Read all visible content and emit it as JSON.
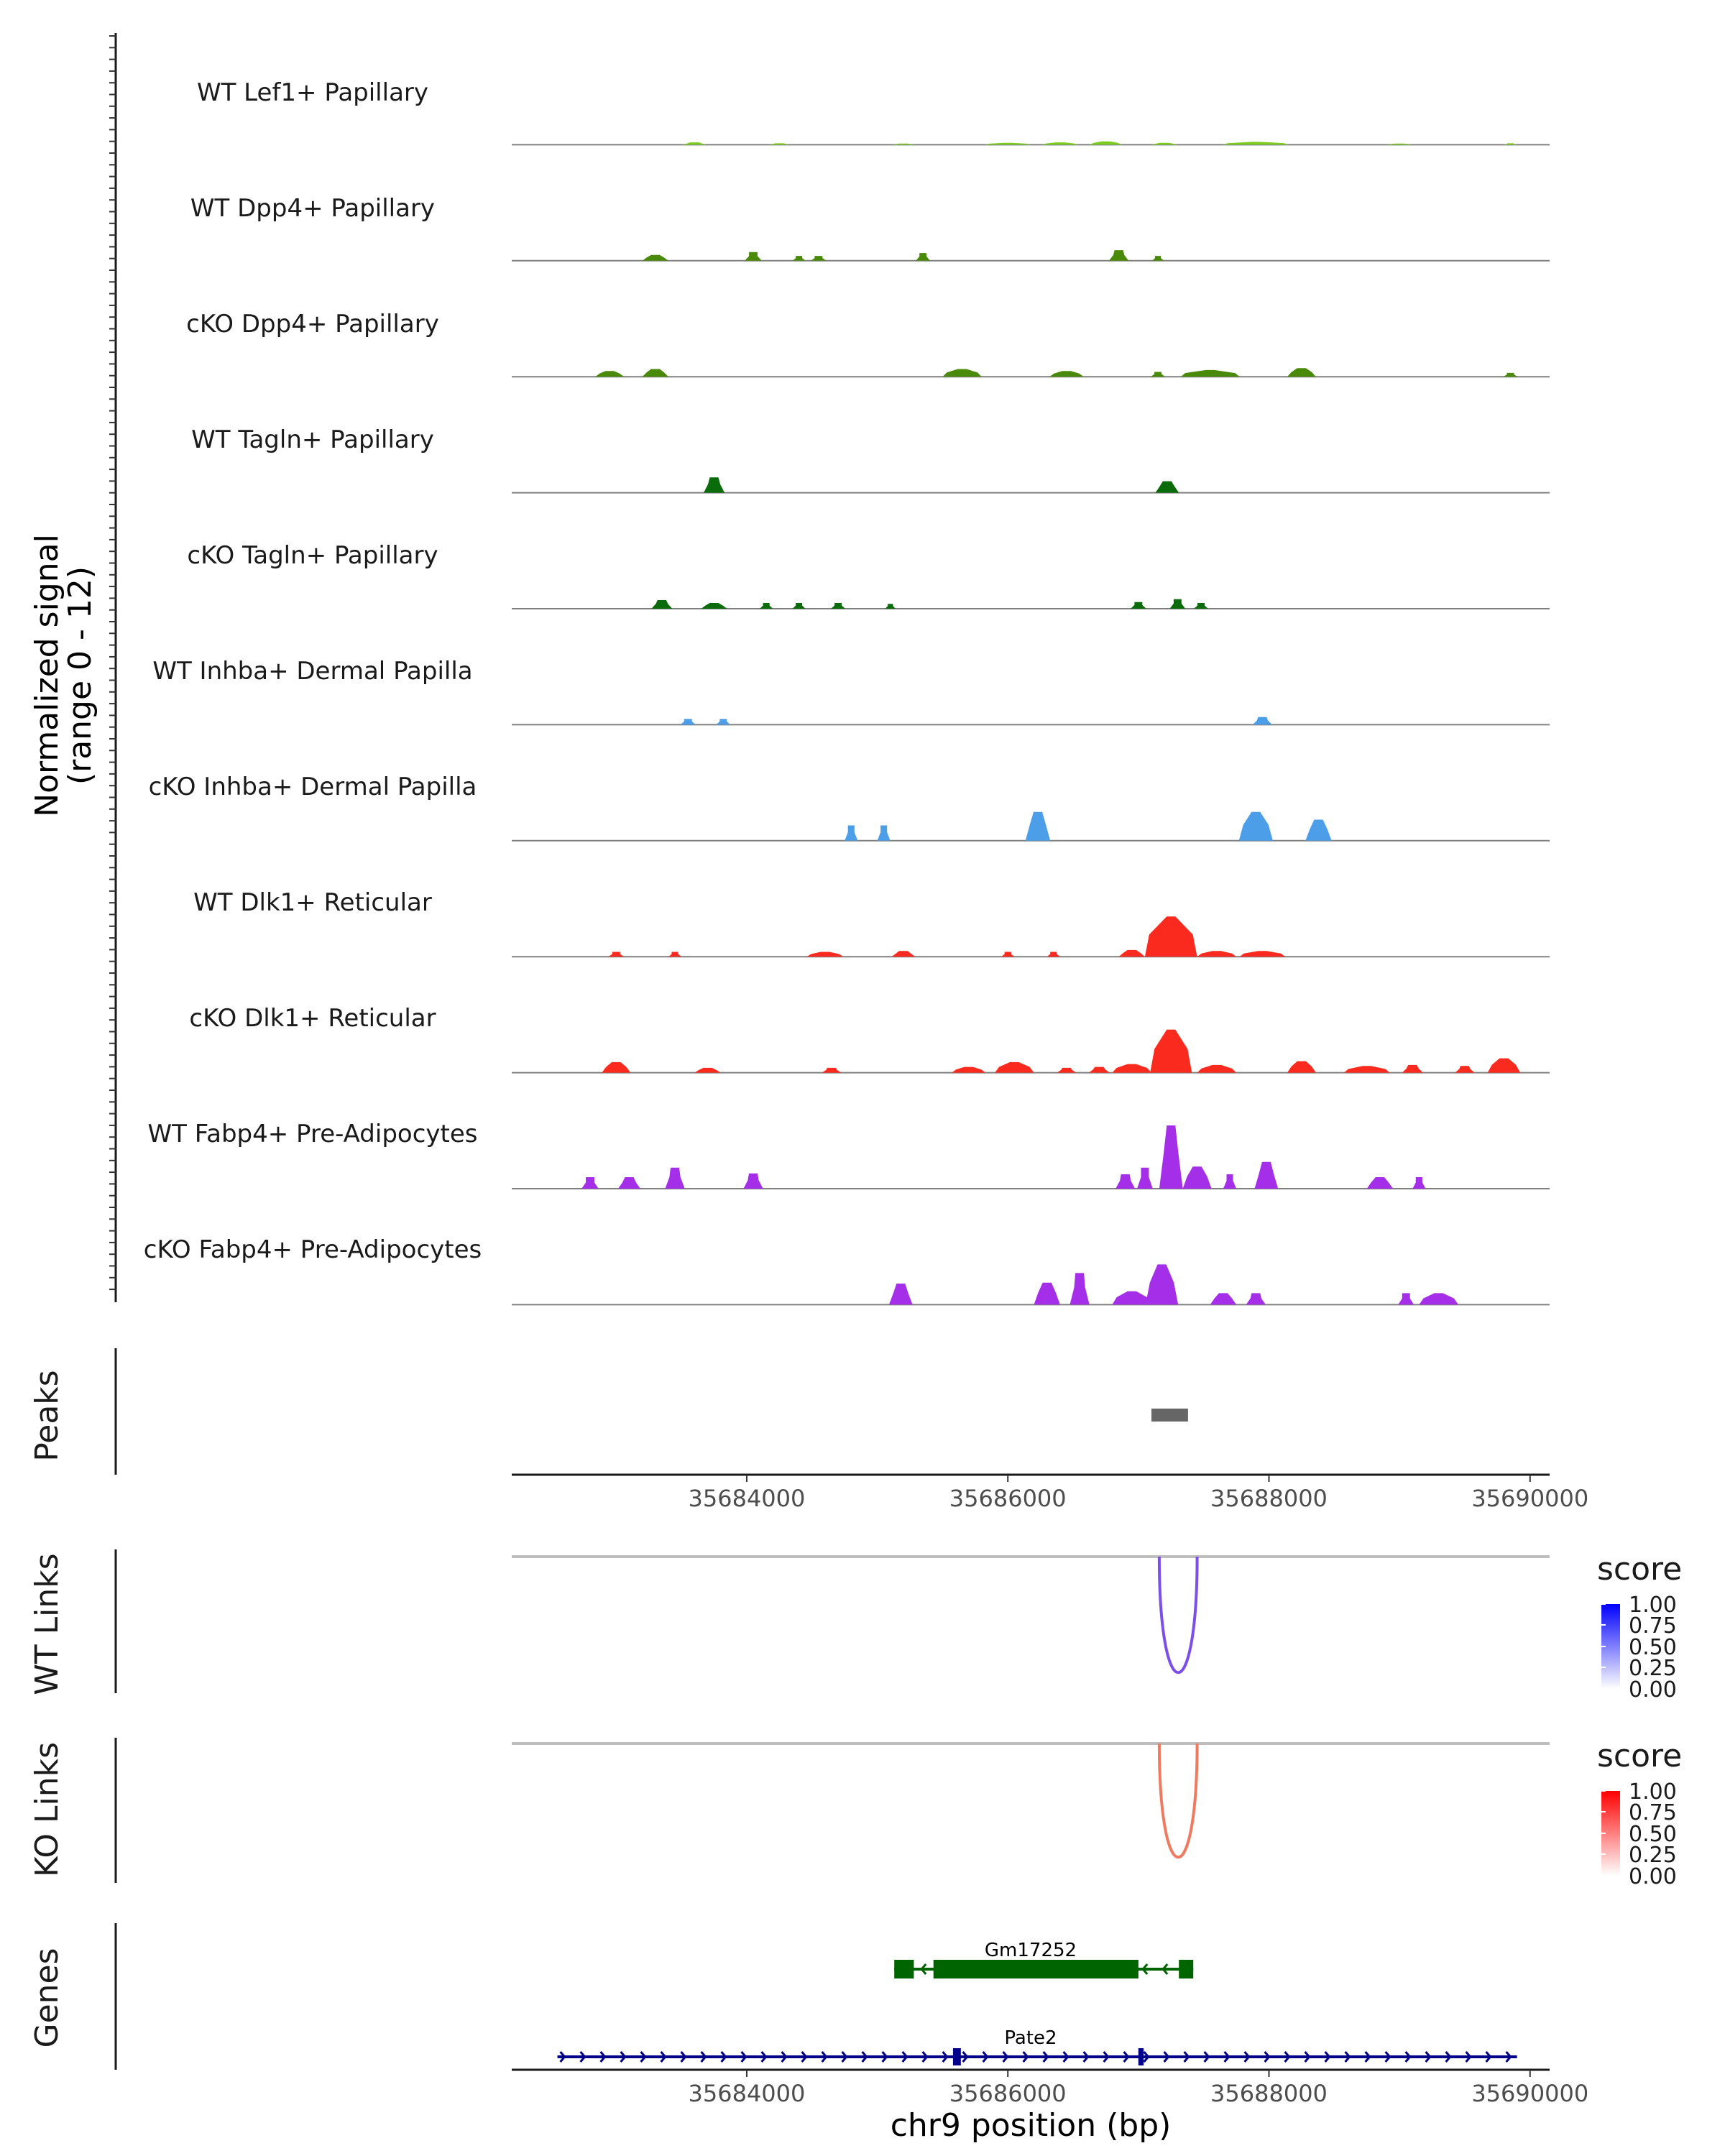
{
  "chart_data": {
    "type": "area",
    "chromosome": "chr9",
    "xlim": [
      35682200,
      35690150
    ],
    "x_ticks": [
      35684000,
      35686000,
      35688000,
      35690000
    ],
    "x_tick_labels": [
      "35684000",
      "35686000",
      "35688000",
      "35690000"
    ],
    "xlabel": "chr9 position (bp)",
    "coverage": {
      "ylabel_line1": "Normalized signal",
      "ylabel_line2": "(range 0 - 12)",
      "ylim": [
        0,
        12
      ],
      "tracks": [
        {
          "name": "WT Lef1+ Papillary",
          "color": "#7CCD1F",
          "peaks": [
            [
              35683600,
              180,
              0.25
            ],
            [
              35684250,
              160,
              0.15
            ],
            [
              35685200,
              180,
              0.12
            ],
            [
              35686000,
              350,
              0.2
            ],
            [
              35686400,
              280,
              0.25
            ],
            [
              35686750,
              250,
              0.35
            ],
            [
              35687200,
              200,
              0.2
            ],
            [
              35687900,
              500,
              0.3
            ],
            [
              35689000,
              200,
              0.12
            ],
            [
              35689850,
              100,
              0.15
            ]
          ]
        },
        {
          "name": "WT Dpp4+ Papillary",
          "color": "#4A8A0B",
          "peaks": [
            [
              35683300,
              200,
              0.6
            ],
            [
              35684050,
              130,
              0.9
            ],
            [
              35684400,
              100,
              0.5
            ],
            [
              35684550,
              120,
              0.5
            ],
            [
              35685350,
              110,
              0.8
            ],
            [
              35686850,
              150,
              1.1
            ],
            [
              35687150,
              90,
              0.5
            ]
          ]
        },
        {
          "name": "cKO Dpp4+ Papillary",
          "color": "#4A8A0B",
          "peaks": [
            [
              35682950,
              220,
              0.6
            ],
            [
              35683300,
              200,
              0.8
            ],
            [
              35685650,
              300,
              0.8
            ],
            [
              35686450,
              260,
              0.6
            ],
            [
              35687150,
              110,
              0.5
            ],
            [
              35687550,
              450,
              0.7
            ],
            [
              35688250,
              220,
              0.9
            ],
            [
              35689850,
              110,
              0.4
            ]
          ]
        },
        {
          "name": "WT Tagln+ Papillary",
          "color": "#0A6B0A",
          "peaks": [
            [
              35683750,
              160,
              1.6
            ],
            [
              35687220,
              180,
              1.2
            ]
          ]
        },
        {
          "name": "cKO Tagln+ Papillary",
          "color": "#0A6B0A",
          "peaks": [
            [
              35683350,
              160,
              0.9
            ],
            [
              35683750,
              200,
              0.6
            ],
            [
              35684150,
              100,
              0.6
            ],
            [
              35684400,
              100,
              0.6
            ],
            [
              35684700,
              110,
              0.6
            ],
            [
              35685100,
              80,
              0.5
            ],
            [
              35687000,
              120,
              0.7
            ],
            [
              35687300,
              120,
              1.0
            ],
            [
              35687480,
              110,
              0.6
            ]
          ]
        },
        {
          "name": "WT Inhba+ Dermal Papilla",
          "color": "#4C9EE8",
          "peaks": [
            [
              35683550,
              120,
              0.6
            ],
            [
              35683820,
              110,
              0.6
            ],
            [
              35687950,
              150,
              0.8
            ]
          ]
        },
        {
          "name": "cKO Inhba+ Dermal Papilla",
          "color": "#4C9EE8",
          "peaks": [
            [
              35684800,
              100,
              1.6
            ],
            [
              35685050,
              100,
              1.6
            ],
            [
              35686230,
              190,
              3.0
            ],
            [
              35687900,
              260,
              3.0
            ],
            [
              35688380,
              200,
              2.2
            ]
          ]
        },
        {
          "name": "WT Dlk1+ Reticular",
          "color": "#FA2A1E",
          "peaks": [
            [
              35683000,
              120,
              0.5
            ],
            [
              35683450,
              100,
              0.5
            ],
            [
              35684600,
              280,
              0.5
            ],
            [
              35685200,
              180,
              0.6
            ],
            [
              35686000,
              100,
              0.5
            ],
            [
              35686350,
              100,
              0.5
            ],
            [
              35686950,
              200,
              0.7
            ],
            [
              35687250,
              400,
              4.2
            ],
            [
              35687600,
              300,
              0.6
            ],
            [
              35687950,
              350,
              0.6
            ]
          ]
        },
        {
          "name": "cKO Dlk1+ Reticular",
          "color": "#FA2A1E",
          "peaks": [
            [
              35683000,
              220,
              1.1
            ],
            [
              35683700,
              200,
              0.5
            ],
            [
              35684650,
              150,
              0.5
            ],
            [
              35685700,
              260,
              0.6
            ],
            [
              35686050,
              300,
              1.1
            ],
            [
              35686450,
              150,
              0.5
            ],
            [
              35686700,
              160,
              0.6
            ],
            [
              35686950,
              300,
              0.9
            ],
            [
              35687250,
              320,
              4.5
            ],
            [
              35687600,
              300,
              0.8
            ],
            [
              35688250,
              220,
              1.2
            ],
            [
              35688750,
              350,
              0.7
            ],
            [
              35689100,
              160,
              0.8
            ],
            [
              35689500,
              150,
              0.7
            ],
            [
              35689800,
              250,
              1.5
            ]
          ]
        },
        {
          "name": "WT Fabp4+ Pre-Adipocytes",
          "color": "#A52EE8",
          "peaks": [
            [
              35682800,
              130,
              1.2
            ],
            [
              35683100,
              170,
              1.2
            ],
            [
              35683450,
              150,
              2.2
            ],
            [
              35684050,
              150,
              1.6
            ],
            [
              35686900,
              150,
              1.5
            ],
            [
              35687050,
              120,
              2.2
            ],
            [
              35687250,
              180,
              6.6
            ],
            [
              35687450,
              220,
              2.3
            ],
            [
              35687700,
              100,
              1.5
            ],
            [
              35687980,
              180,
              2.8
            ],
            [
              35688850,
              200,
              1.2
            ],
            [
              35689150,
              100,
              1.2
            ]
          ]
        },
        {
          "name": "cKO Fabp4+ Pre-Adipocytes",
          "color": "#A52EE8",
          "peaks": [
            [
              35685180,
              180,
              2.2
            ],
            [
              35686300,
              200,
              2.3
            ],
            [
              35686550,
              150,
              3.3
            ],
            [
              35686950,
              300,
              1.4
            ],
            [
              35687180,
              250,
              4.2
            ],
            [
              35687650,
              200,
              1.2
            ],
            [
              35687900,
              150,
              1.2
            ],
            [
              35689050,
              120,
              1.2
            ],
            [
              35689300,
              300,
              1.2
            ]
          ]
        }
      ]
    },
    "peaks_track": {
      "label": "Peaks",
      "color": "#666666",
      "regions": [
        [
          35687100,
          35687380
        ]
      ]
    },
    "links": [
      {
        "label": "WT Links",
        "color": "#7B4FE8",
        "anchors": [
          35687160,
          35687450
        ],
        "score": 0.63,
        "legend": {
          "title": "score",
          "ticks": [
            "1.00",
            "0.75",
            "0.50",
            "0.25",
            "0.00"
          ],
          "low": "#FFFFFF",
          "high": "#0000FF"
        }
      },
      {
        "label": "KO Links",
        "color": "#F07A5F",
        "anchors": [
          35687160,
          35687450
        ],
        "score": 0.6,
        "legend": {
          "title": "score",
          "ticks": [
            "1.00",
            "0.75",
            "0.50",
            "0.25",
            "0.00"
          ],
          "low": "#FFFFFF",
          "high": "#FF0000"
        }
      }
    ],
    "genes": {
      "label": "Genes",
      "items": [
        {
          "name": "Gm17252",
          "color": "#006400",
          "strand": "-",
          "start": 35685130,
          "end": 35687420,
          "exons": [
            [
              35685130,
              35685280
            ],
            [
              35685430,
              35687000
            ],
            [
              35687310,
              35687420
            ]
          ]
        },
        {
          "name": "Pate2",
          "color": "#00008B",
          "strand": "+",
          "start": 35682550,
          "end": 35689900,
          "exons": [
            [
              35685580,
              35685640
            ],
            [
              35687000,
              35687040
            ]
          ]
        }
      ]
    }
  }
}
